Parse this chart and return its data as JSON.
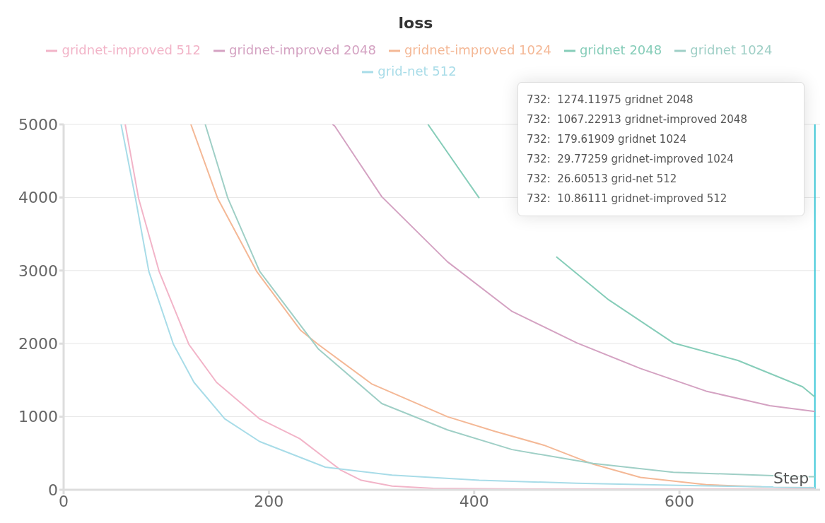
{
  "chart_data": {
    "type": "line",
    "title": "loss",
    "xlabel": "Step",
    "xlim": [
      0,
      737
    ],
    "xticks": [
      0,
      200,
      400,
      600
    ],
    "ylim": [
      0,
      5000
    ],
    "yticks": [
      0,
      1000,
      2000,
      3000,
      4000,
      5000
    ],
    "grid": "y",
    "legend": "top",
    "marker": "none",
    "line_style": "solid",
    "ref_lines": [
      {
        "axis": "x",
        "value": 732,
        "color": "#3cc8d8"
      }
    ],
    "annotations": [
      "732:  1274.11975 gridnet 2048",
      "732:  1067.22913 gridnet-improved 2048",
      "732:  179.61909 gridnet 1024",
      "732:  29.77259 gridnet-improved 1024",
      "732:  26.60513 grid-net 512",
      "732:  10.86111 gridnet-improved 512"
    ],
    "series": [
      {
        "name": "gridnet-improved 512",
        "color": "#f2b4c8",
        "x": [
          60,
          73,
          93,
          122,
          149,
          191,
          230,
          255,
          270,
          290,
          320,
          360,
          450,
          732
        ],
        "values": [
          5000,
          3990,
          2990,
          1990,
          1470,
          970,
          700,
          430,
          270,
          130,
          50,
          20,
          10,
          10
        ]
      },
      {
        "name": "gridnet-improved 2048",
        "color": "#d4a2c2",
        "x": [
          262,
          264,
          310,
          374,
          437,
          500,
          562,
          626,
          688,
          732
        ],
        "values": [
          5000,
          4980,
          4010,
          3120,
          2440,
          2010,
          1660,
          1350,
          1150,
          1070
        ]
      },
      {
        "name": "gridnet-improved 1024",
        "color": "#f4b896",
        "x": [
          124,
          150,
          188,
          231,
          248,
          300,
          374,
          420,
          468,
          516,
          562,
          626,
          680,
          732
        ],
        "values": [
          5000,
          3990,
          2990,
          2180,
          1990,
          1450,
          1000,
          800,
          610,
          350,
          170,
          70,
          40,
          30
        ]
      },
      {
        "name": "gridnet 2048",
        "color": "#86cdb9",
        "x": [
          355,
          405,
          440,
          480,
          531,
          594,
          657,
          720,
          732
        ],
        "values": [
          5000,
          3990,
          null,
          3190,
          2600,
          2010,
          1770,
          1410,
          1270
        ]
      },
      {
        "name": "gridnet 1024",
        "color": "#9fcfc6",
        "x": [
          138,
          160,
          191,
          248,
          310,
          374,
          437,
          516,
          594,
          720,
          732
        ],
        "values": [
          5000,
          3990,
          2990,
          1930,
          1180,
          820,
          550,
          360,
          240,
          180,
          180
        ]
      },
      {
        "name": "grid-net 512",
        "color": "#a8dce8",
        "x": [
          56,
          70,
          83,
          107,
          127,
          157,
          191,
          255,
          320,
          405,
          500,
          600,
          732
        ],
        "values": [
          5000,
          3990,
          2990,
          1990,
          1470,
          970,
          660,
          310,
          200,
          130,
          90,
          60,
          30
        ]
      }
    ]
  }
}
